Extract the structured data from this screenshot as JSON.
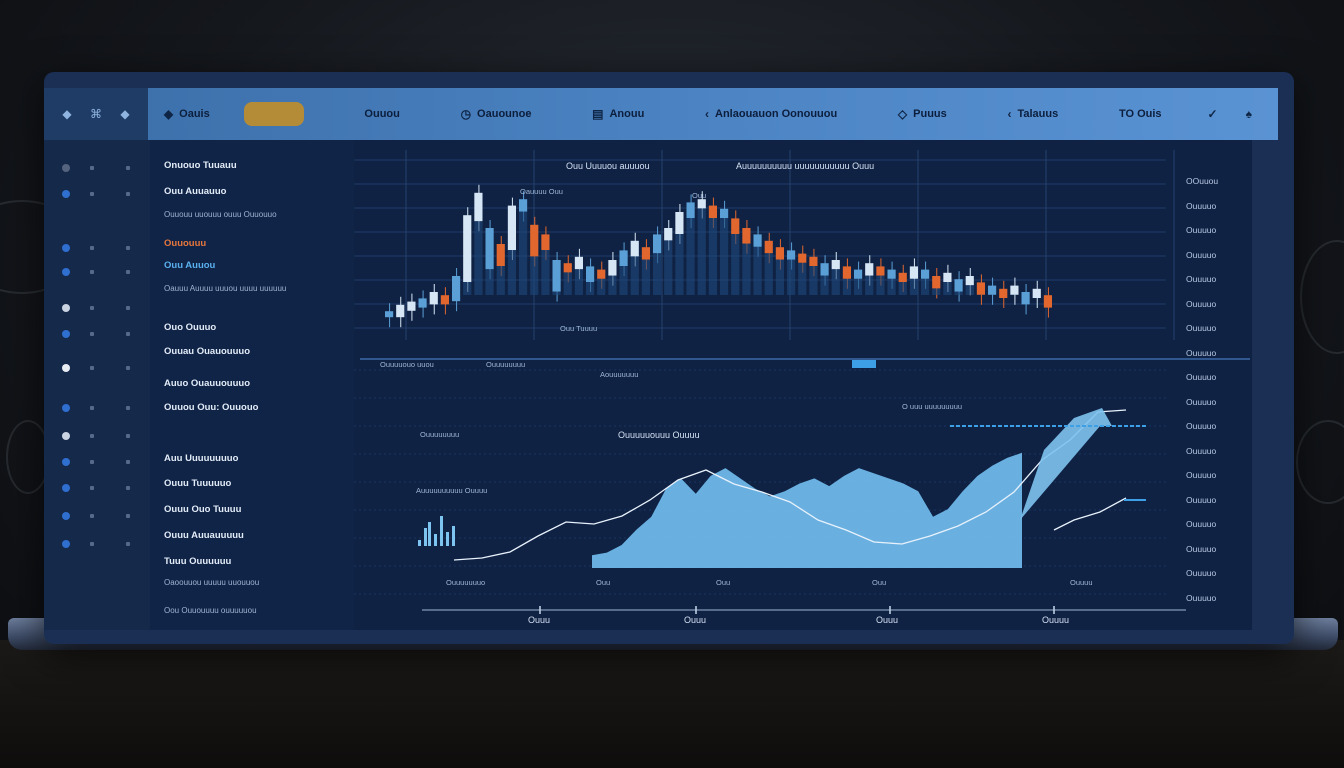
{
  "colors": {
    "nav_bar": "#4c84c4",
    "sidebar": "#15294a",
    "panel": "#102448",
    "chart_bg": "#0f2244",
    "candle_up": "#d7e6f5",
    "candle_down": "#e2672e",
    "candle_neutral": "#5aa0d6",
    "area_fill": "#6fb8ea",
    "accent_gold": "#b48b37"
  },
  "topnav": {
    "items": [
      {
        "icon": "diamond-icon",
        "label": "Oauis"
      },
      {
        "icon": "",
        "label": "Ouuou"
      },
      {
        "icon": "clock-icon",
        "label": "Oauounoe"
      },
      {
        "icon": "chart-icon",
        "label": "Anouu"
      },
      {
        "icon": "chevron-icon",
        "label": "Anlaouauon Oonouuou"
      },
      {
        "icon": "diamond-icon",
        "label": "Puuus"
      },
      {
        "icon": "chevron-icon",
        "label": "Talauus"
      },
      {
        "icon": "",
        "label": "TO Ouis"
      }
    ]
  },
  "sidebar_left_icons": [
    "diamond-icon",
    "bolt-icon",
    "diamond-icon"
  ],
  "leftpanel": {
    "items": [
      {
        "text": "Onuouo Tuuauu",
        "style": "title"
      },
      {
        "text": "Ouu Auuauuo",
        "style": "normal"
      },
      {
        "text": "Ouuouu uuouuu ouuu Ouuouuo",
        "style": "small"
      },
      {
        "text": "Ouuouuu",
        "style": "orange"
      },
      {
        "text": "Ouu Auuou",
        "style": "blue"
      },
      {
        "text": "Oauuu Auuuu uuuou uuuu uuuuuu",
        "style": "small"
      },
      {
        "text": "Ouo Ouuuo",
        "style": "normal"
      },
      {
        "text": "Ouuau Ouauouuuo",
        "style": "normal"
      },
      {
        "text": "Auuo Ouauuouuuo",
        "style": "normal"
      },
      {
        "text": "Ouuou Ouu: Ouuouo",
        "style": "normal"
      },
      {
        "text": "Auu Uuuuuuuuo",
        "style": "normal"
      },
      {
        "text": "Ouuu Tuuuuuo",
        "style": "normal"
      },
      {
        "text": "Ouuu Ouo Tuuuu",
        "style": "normal"
      },
      {
        "text": "Ouuu Auuauuuuu",
        "style": "normal"
      },
      {
        "text": "Tuuu Ouuuuuu",
        "style": "normal"
      },
      {
        "text": "Oaoouuou uuuuu uuouuou",
        "style": "small"
      },
      {
        "text": "Oou Ouuouuuu ouuuuuou",
        "style": "small"
      }
    ]
  },
  "chart_top": {
    "legend_label": "Ouu Uuuuou auuuou",
    "subtitle": "Auuuuuuuuuu uuuuuuuuuuu Ouuu",
    "sub_label": "Oauuuu Ouu",
    "inner_label": "Ouu",
    "bottom_label": "Ouu Tuuuu"
  },
  "chart_bottom": {
    "labels": [
      "Ouuuuouo uuou",
      "Ouuuuuuuu",
      "Aouuuuuuu",
      "Ouuuuuouuu Ouuuu",
      "Ouuuuuuuu",
      "O uuu uuuuuuuuu",
      "Auuuuuuuuuu Ouuuu"
    ],
    "x_ticks": [
      "Ouuu",
      "Ouuu",
      "Ouuu",
      "Ouuuu"
    ],
    "x_small": [
      "Ouuuuuuuo",
      "Ouu",
      "Ouu",
      "Ouu",
      "Ouuuu"
    ]
  },
  "right_axis": [
    "OOuuou",
    "Ouuuuo",
    "Ouuuuo",
    "Ouuuuo",
    "Ouuuuo",
    "Ouuuuo",
    "Ouuuuo",
    "Ouuuuo",
    "Ouuuuo",
    "Ouuuuo",
    "Ouuuuo",
    "Ouuuuo",
    "Ouuuuo",
    "Ouuuuo",
    "Ouuuuo",
    "Ouuuuo",
    "Ouuuuo",
    "Ouuuuo"
  ],
  "chart_data": [
    {
      "type": "candlestick",
      "title": "",
      "series": [
        {
          "values": [
            18,
            22,
            24,
            26,
            30,
            28,
            40,
            78,
            92,
            70,
            60,
            84,
            88,
            72,
            66,
            50,
            48,
            52,
            46,
            44,
            50,
            56,
            62,
            58,
            66,
            70,
            80,
            86,
            88,
            84,
            82,
            76,
            70,
            66,
            62,
            58,
            56,
            54,
            52,
            48,
            50,
            46,
            44,
            48,
            46,
            44,
            42,
            46,
            44,
            40,
            42,
            38,
            40,
            36,
            34,
            32,
            34,
            30,
            32,
            28
          ]
        }
      ]
    },
    {
      "type": "area",
      "title": "",
      "series": [
        {
          "values": [
            10,
            12,
            18,
            30,
            40,
            62,
            70,
            58,
            72,
            78,
            70,
            62,
            56,
            60,
            66,
            70,
            64,
            72,
            78,
            74,
            70,
            66,
            60,
            40,
            46,
            60,
            72,
            80,
            86,
            90
          ]
        }
      ]
    }
  ]
}
